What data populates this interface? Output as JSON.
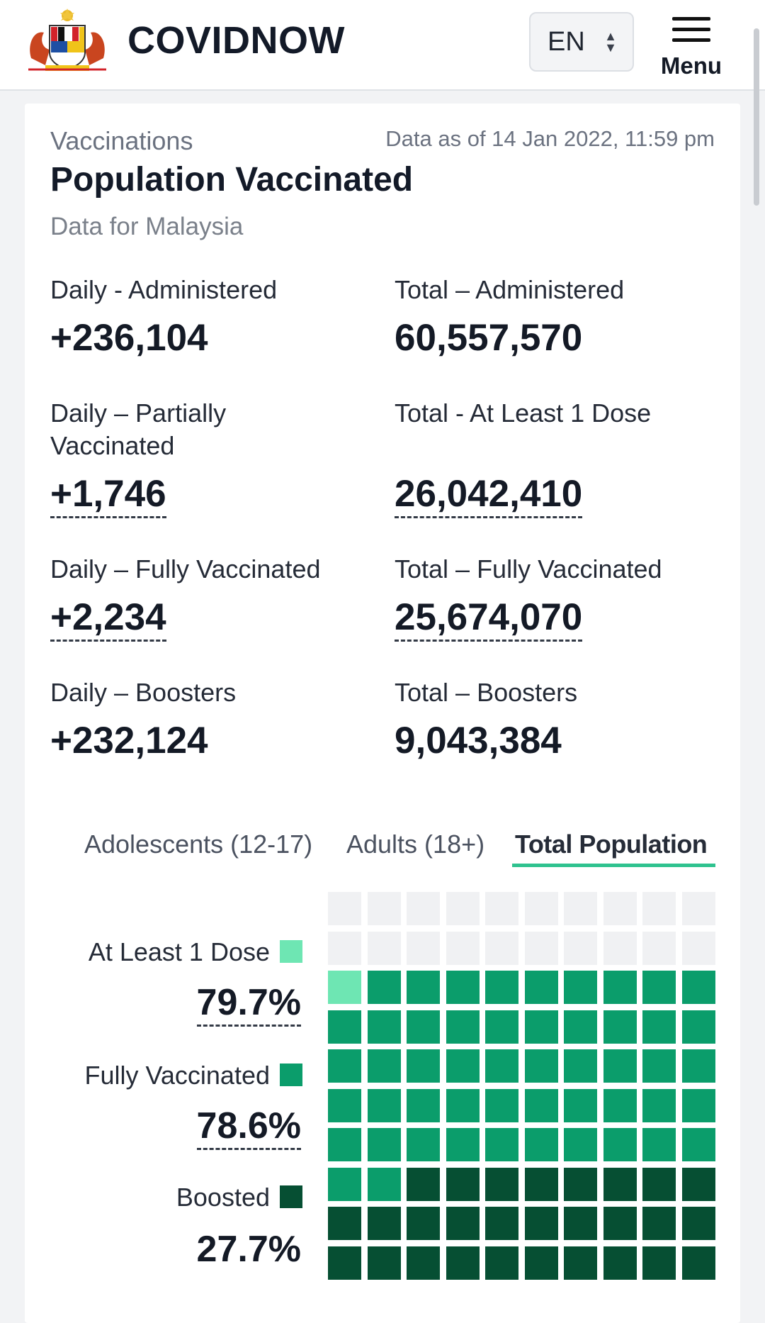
{
  "header": {
    "brand": "COVIDNOW",
    "language": "EN",
    "menu_label": "Menu"
  },
  "card": {
    "section": "Vaccinations",
    "as_of": "Data as of 14 Jan 2022, 11:59 pm",
    "title": "Population Vaccinated",
    "subtitle": "Data for Malaysia"
  },
  "stats": {
    "daily_administered": {
      "label": "Daily - Administered",
      "value": "+236,104"
    },
    "total_administered": {
      "label": "Total – Administered",
      "value": "60,557,570"
    },
    "daily_partial": {
      "label_1": "Daily – Partially",
      "label_2": "Vaccinated",
      "value": "+1,746"
    },
    "total_one_dose": {
      "label": "Total - At Least 1 Dose",
      "value": "26,042,410"
    },
    "daily_full": {
      "label": "Daily – Fully Vaccinated",
      "value": "+2,234"
    },
    "total_full": {
      "label": "Total – Fully Vaccinated",
      "value": "25,674,070"
    },
    "daily_boosters": {
      "label": "Daily – Boosters",
      "value": "+232,124"
    },
    "total_boosters": {
      "label": "Total – Boosters",
      "value": "9,043,384"
    }
  },
  "tabs": [
    {
      "label": "Adolescents (12-17)",
      "active": false
    },
    {
      "label": "Adults (18+)",
      "active": false
    },
    {
      "label": "Total Population",
      "active": true
    }
  ],
  "legend": {
    "one_dose": {
      "label": "At Least 1 Dose",
      "value": "79.7%",
      "color": "#6ee6b3"
    },
    "fully": {
      "label": "Fully Vaccinated",
      "value": "78.6%",
      "color": "#0b9d6b"
    },
    "boosted": {
      "label": "Boosted",
      "value": "27.7%",
      "color": "#064f33"
    }
  },
  "chart_data": {
    "type": "waffle",
    "series": [
      {
        "name": "At Least 1 Dose",
        "value": 79.7
      },
      {
        "name": "Fully Vaccinated",
        "value": 78.6
      },
      {
        "name": "Boosted",
        "value": 27.7
      }
    ],
    "colors": {
      "empty": "#f0f1f3",
      "one_dose": "#6ee6b3",
      "fully": "#0b9d6b",
      "boosted": "#064f33"
    }
  }
}
